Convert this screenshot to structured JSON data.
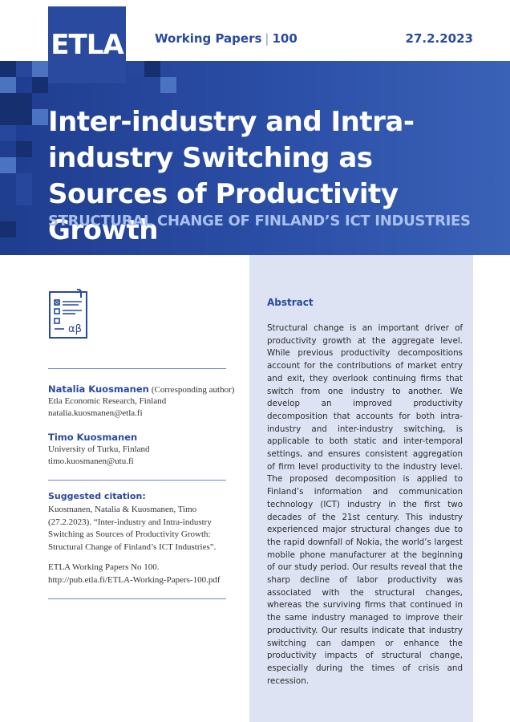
{
  "header": {
    "logo": "ETLA",
    "series": "Working Papers",
    "separator": "|",
    "number": "100",
    "date": "27.2.2023"
  },
  "title": "Inter-industry and Intra-industry Switching as Sources of Productivity Growth",
  "subtitle": "STRUCTURAL CHANGE OF FINLAND’S ICT INDUSTRIES",
  "icon": "document-alpha-beta-icon",
  "icon_glyph": "αβ",
  "authors": [
    {
      "name": "Natalia Kuosmanen",
      "role": "(Corresponding author)",
      "affiliation": "Etla Economic Research, Finland",
      "email": "natalia.kuosmanen@etla.fi"
    },
    {
      "name": "Timo Kuosmanen",
      "role": "",
      "affiliation": "University of Turku, Finland",
      "email": "timo.kuosmanen@utu.fi"
    }
  ],
  "citation": {
    "heading": "Suggested citation:",
    "text": "Kuosmanen, Natalia & Kuosmanen, Timo (27.2.2023). “Inter-industry and Intra-industry Switching as Sources of Productivity Growth: Structural Change of Finland’s ICT Industries”.",
    "series_line": "ETLA Working Papers No 100.",
    "url": "http://pub.etla.fi/ETLA-Working-Papers-100.pdf"
  },
  "abstract": {
    "heading": "Abstract",
    "text": "Structural change is an important driver of productivity growth at the aggregate level. While previous productivity decompositions account for the contributions of market entry and exit, they overlook continuing firms that switch from one industry to another. We develop an improved productivity decomposition that accounts for both intra-industry and inter-industry switching, is applicable to both static and inter-temporal settings, and ensures consistent aggregation of firm level productivity to the industry level. The proposed decomposition is applied to Finland’s information and communication technology (ICT) industry in the first two decades of the 21st century. This industry experienced major structural changes due to the rapid downfall of Nokia, the world’s largest mobile phone manufacturer at the beginning of our study period. Our results reveal that the sharp decline of labor productivity was associated with the structural changes, whereas the surviving firms that continued in the same industry managed to improve their productivity. Our results indicate that industry switching can dampen or enhance the productivity impacts of structural change, especially during the times of crisis and recession."
  },
  "colors": {
    "brand_blue": "#2a4aa0",
    "panel": "#dde3f3",
    "subtitle": "#a9c1f0"
  }
}
